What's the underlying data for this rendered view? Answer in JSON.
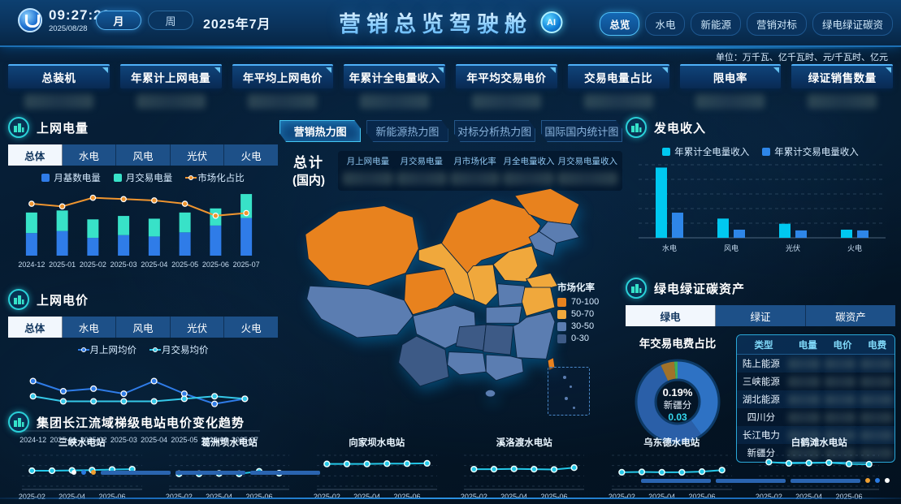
{
  "header": {
    "time": "09:27:22",
    "date": "2025/08/28",
    "period_buttons": [
      {
        "label": "月",
        "active": true
      },
      {
        "label": "周",
        "active": false
      }
    ],
    "current_month": "2025年7月",
    "title": "营销总览驾驶舱",
    "ai_label": "AI",
    "nav_tabs": [
      {
        "label": "总览",
        "active": true
      },
      {
        "label": "水电",
        "active": false
      },
      {
        "label": "新能源",
        "active": false
      },
      {
        "label": "营销对标",
        "active": false
      },
      {
        "label": "绿电绿证碳资",
        "active": false
      }
    ],
    "units_note": "单位：万千瓦、亿千瓦时、元/千瓦时、亿元"
  },
  "kpi_cards": [
    {
      "label": "总装机"
    },
    {
      "label": "年累计上网电量"
    },
    {
      "label": "年平均上网电价"
    },
    {
      "label": "年累计全电量收入"
    },
    {
      "label": "年平均交易电价"
    },
    {
      "label": "交易电量占比"
    },
    {
      "label": "限电率"
    },
    {
      "label": "绿证销售数量"
    }
  ],
  "left": {
    "power_panel": {
      "title": "上网电量",
      "tabs": [
        "总体",
        "水电",
        "风电",
        "光伏",
        "火电"
      ],
      "active_tab": 0
    },
    "price_panel": {
      "title": "上网电价",
      "tabs": [
        "总体",
        "水电",
        "风电",
        "光伏",
        "火电"
      ],
      "active_tab": 0
    }
  },
  "center": {
    "tabs": [
      {
        "label": "营销热力图",
        "active": true
      },
      {
        "label": "新能源热力图",
        "active": false
      },
      {
        "label": "对标分析热力图",
        "active": false
      },
      {
        "label": "国际国内统计图",
        "active": false
      }
    ],
    "total_label_line1": "总计",
    "total_label_line2": "(国内)",
    "columns": [
      "月上网电量",
      "月交易电量",
      "月市场化率",
      "月全电量收入",
      "月交易电量收入"
    ],
    "map_legend": {
      "title": "市场化率",
      "items": [
        {
          "label": "70-100",
          "color": "#e8821e"
        },
        {
          "label": "50-70",
          "color": "#f0a83c"
        },
        {
          "label": "30-50",
          "color": "#5b7db1"
        },
        {
          "label": "0-30",
          "color": "#3d5a86"
        }
      ]
    }
  },
  "right": {
    "income_panel": {
      "title": "发电收入"
    },
    "green_panel": {
      "title": "绿电绿证碳资产",
      "tabs": [
        {
          "label": "绿电",
          "active": true
        },
        {
          "label": "绿证",
          "active": false
        },
        {
          "label": "碳资产",
          "active": false
        }
      ],
      "donut_title": "年交易电费占比",
      "donut_center": {
        "percent": "0.19%",
        "name": "新疆分",
        "value": "0.03"
      },
      "table": {
        "columns": [
          "类型",
          "电量",
          "电价",
          "电费"
        ],
        "rows": [
          "陆上能源",
          "三峡能源",
          "湖北能源",
          "四川分",
          "长江电力",
          "新疆分"
        ]
      }
    }
  },
  "bottom": {
    "title": "集团长江流域梯级电站电价变化趋势"
  },
  "chart_data": [
    {
      "id": "power",
      "type": "bar",
      "subtype": "stacked-with-line",
      "title": "上网电量（总体）",
      "categories": [
        "2024-12",
        "2025-01",
        "2025-02",
        "2025-03",
        "2025-04",
        "2025-05",
        "2025-06",
        "2025-07"
      ],
      "series": [
        {
          "name": "月基数电量",
          "color": "#2f7ce8",
          "values": [
            33,
            36,
            26,
            30,
            28,
            34,
            44,
            55
          ]
        },
        {
          "name": "月交易电量",
          "color": "#38e2c8",
          "values": [
            30,
            30,
            27,
            28,
            26,
            29,
            25,
            35
          ]
        }
      ],
      "line_series": {
        "name": "市场化占比",
        "color": "#f0952f",
        "values": [
          78,
          74,
          87,
          85,
          83,
          78,
          60,
          64
        ],
        "ylim": [
          0,
          100
        ]
      },
      "legend_position": "top"
    },
    {
      "id": "price",
      "type": "line",
      "title": "上网电价（总体）",
      "categories": [
        "2024-12",
        "2025-01",
        "2025-02",
        "2025-03",
        "2025-04",
        "2025-05",
        "2025-06",
        "2025-07"
      ],
      "series": [
        {
          "name": "月上网均价",
          "color": "#2f7ce8",
          "values": [
            0.42,
            0.38,
            0.39,
            0.37,
            0.42,
            0.37,
            0.33,
            0.35
          ]
        },
        {
          "name": "月交易均价",
          "color": "#35c8e8",
          "values": [
            0.36,
            0.34,
            0.34,
            0.34,
            0.34,
            0.35,
            0.36,
            0.35
          ]
        }
      ],
      "legend_position": "top"
    },
    {
      "id": "income",
      "type": "bar",
      "subtype": "grouped",
      "title": "发电收入",
      "categories": [
        "水电",
        "风电",
        "光伏",
        "火电"
      ],
      "series": [
        {
          "name": "年累计全电量收入",
          "color": "#00c8f0",
          "values": [
            950,
            260,
            190,
            110
          ]
        },
        {
          "name": "年累计交易电量收入",
          "color": "#2e86e8",
          "values": [
            340,
            110,
            100,
            100
          ]
        }
      ],
      "grid": "dashed",
      "legend_position": "top"
    },
    {
      "id": "donut",
      "type": "pie",
      "title": "年交易电费占比",
      "center_text": {
        "percent": "0.19%",
        "name": "新疆分",
        "value": "0.03"
      },
      "segments": [
        {
          "color": "#2e72c4",
          "value": 40
        },
        {
          "color": "#2a5fa8",
          "value": 53
        },
        {
          "color": "#a0722a",
          "value": 5.5
        },
        {
          "color": "#3fae5a",
          "value": 1.5
        }
      ]
    },
    {
      "id": "stations",
      "type": "line",
      "title": "集团长江流域梯级电站电价变化趋势",
      "categories": [
        "2025-02",
        "2025-03",
        "2025-04",
        "2025-05",
        "2025-06",
        "2025-07"
      ],
      "x_ticks_shown": [
        "2025-02",
        "2025-04",
        "2025-06"
      ],
      "line_color": "#24c8e8",
      "ylim": [
        0,
        1
      ],
      "charts": [
        {
          "name": "三峡水电站",
          "values": [
            0.5,
            0.5,
            0.51,
            0.52,
            0.54,
            0.55
          ]
        },
        {
          "name": "葛洲坝水电站",
          "values": [
            0.4,
            0.4,
            0.41,
            0.4,
            0.48,
            0.42
          ]
        },
        {
          "name": "向家坝水电站",
          "values": [
            0.72,
            0.72,
            0.72,
            0.73,
            0.73,
            0.74
          ]
        },
        {
          "name": "溪洛渡水电站",
          "values": [
            0.55,
            0.55,
            0.56,
            0.55,
            0.54,
            0.6
          ]
        },
        {
          "name": "乌东德水电站",
          "values": [
            0.45,
            0.46,
            0.45,
            0.45,
            0.47,
            0.52
          ]
        },
        {
          "name": "白鹤滩水电站",
          "values": [
            0.78,
            0.74,
            0.75,
            0.76,
            0.72,
            0.71
          ]
        }
      ]
    }
  ]
}
